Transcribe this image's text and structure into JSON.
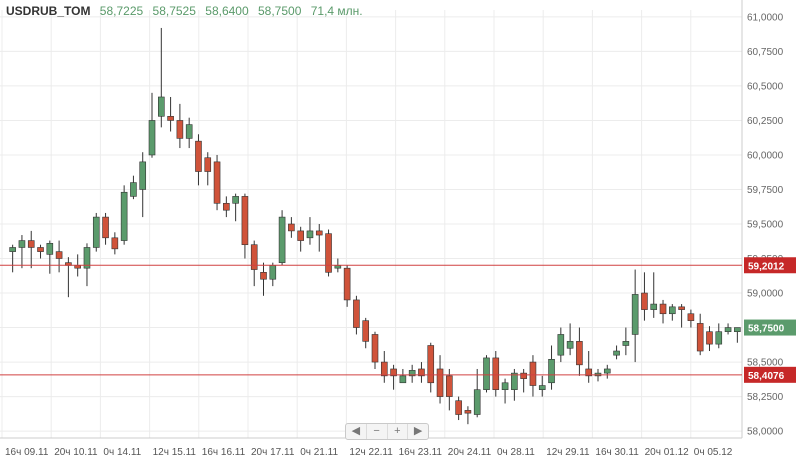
{
  "header": {
    "symbol": "USDRUB_TOM",
    "open": "58,7225",
    "high": "58,7525",
    "low": "58,6400",
    "close": "58,7500",
    "volume": "71,4 млн."
  },
  "navigator": {
    "left": "◀",
    "zoom_out": "−",
    "zoom_in": "+",
    "right": "▶"
  },
  "colors": {
    "up": "#5b9b6c",
    "down": "#d0533a",
    "level": "#d04040",
    "last": "#5b9b6c"
  },
  "chart_data": {
    "type": "candlestick",
    "y_axis": {
      "range": [
        57.95,
        61.05
      ],
      "ticks": [
        "61,0000",
        "60,7500",
        "60,5000",
        "60,2500",
        "60,0000",
        "59,7500",
        "59,5000",
        "59,2500",
        "59,0000",
        "58,7500",
        "58,5000",
        "58,2500",
        "58,0000"
      ]
    },
    "x_labels": [
      "16ч 09.11",
      "20ч 10.11",
      "0ч 14.11",
      "12ч 15.11",
      "16ч 16.11",
      "20ч 17.11",
      "0ч 21.11",
      "12ч 22.11",
      "16ч 23.11",
      "20ч 24.11",
      "0ч 28.11",
      "12ч 29.11",
      "16ч 30.11",
      "20ч 01.12",
      "0ч 05.12"
    ],
    "levels": [
      {
        "label": "59,2012",
        "value": 59.2012
      },
      {
        "label": "58,4076",
        "value": 58.4076
      }
    ],
    "last_price": {
      "label": "58,7500",
      "value": 58.75
    },
    "candles": [
      [
        59.3,
        59.33,
        59.35,
        59.15
      ],
      [
        59.33,
        59.38,
        59.42,
        59.18
      ],
      [
        59.38,
        59.33,
        59.45,
        59.18
      ],
      [
        59.33,
        59.3,
        59.35,
        59.25
      ],
      [
        59.28,
        59.36,
        59.38,
        59.14
      ],
      [
        59.3,
        59.25,
        59.38,
        59.15
      ],
      [
        59.22,
        59.2,
        59.26,
        58.97
      ],
      [
        59.2,
        59.18,
        59.28,
        59.12
      ],
      [
        59.18,
        59.33,
        59.36,
        59.05
      ],
      [
        59.33,
        59.55,
        59.58,
        59.3
      ],
      [
        59.55,
        59.4,
        59.58,
        59.35
      ],
      [
        59.4,
        59.32,
        59.44,
        59.28
      ],
      [
        59.38,
        59.73,
        59.78,
        59.35
      ],
      [
        59.7,
        59.8,
        59.85,
        59.68
      ],
      [
        59.75,
        59.95,
        60.02,
        59.55
      ],
      [
        60.0,
        60.25,
        60.45,
        59.98
      ],
      [
        60.28,
        60.42,
        60.92,
        60.2
      ],
      [
        60.28,
        60.25,
        60.42,
        60.17
      ],
      [
        60.25,
        60.12,
        60.37,
        60.05
      ],
      [
        60.12,
        60.22,
        60.27,
        60.05
      ],
      [
        60.1,
        59.88,
        60.15,
        59.78
      ],
      [
        59.98,
        59.88,
        60.02,
        59.78
      ],
      [
        59.95,
        59.65,
        60.0,
        59.6
      ],
      [
        59.65,
        59.6,
        59.7,
        59.55
      ],
      [
        59.65,
        59.7,
        59.72,
        59.52
      ],
      [
        59.7,
        59.35,
        59.72,
        59.25
      ],
      [
        59.35,
        59.17,
        59.38,
        59.05
      ],
      [
        59.15,
        59.1,
        59.22,
        58.98
      ],
      [
        59.1,
        59.2,
        59.22,
        59.05
      ],
      [
        59.22,
        59.55,
        59.6,
        59.2
      ],
      [
        59.5,
        59.45,
        59.55,
        59.4
      ],
      [
        59.45,
        59.38,
        59.48,
        59.3
      ],
      [
        59.4,
        59.45,
        59.55,
        59.35
      ],
      [
        59.45,
        59.42,
        59.5,
        59.3
      ],
      [
        59.43,
        59.15,
        59.46,
        59.12
      ],
      [
        59.18,
        59.2,
        59.25,
        59.15
      ],
      [
        59.18,
        58.95,
        59.2,
        58.9
      ],
      [
        58.95,
        58.75,
        58.98,
        58.7
      ],
      [
        58.8,
        58.65,
        58.82,
        58.6
      ],
      [
        58.7,
        58.5,
        58.72,
        58.45
      ],
      [
        58.5,
        58.4,
        58.58,
        58.35
      ],
      [
        58.45,
        58.4,
        58.48,
        58.3
      ],
      [
        58.35,
        58.4,
        58.45,
        58.35
      ],
      [
        58.4,
        58.44,
        58.48,
        58.35
      ],
      [
        58.45,
        58.4,
        58.5,
        58.35
      ],
      [
        58.62,
        58.35,
        58.64,
        58.28
      ],
      [
        58.45,
        58.25,
        58.55,
        58.2
      ],
      [
        58.4,
        58.25,
        58.45,
        58.15
      ],
      [
        58.22,
        58.12,
        58.25,
        58.08
      ],
      [
        58.15,
        58.13,
        58.18,
        58.05
      ],
      [
        58.12,
        58.3,
        58.45,
        58.1
      ],
      [
        58.3,
        58.53,
        58.55,
        58.28
      ],
      [
        58.53,
        58.3,
        58.58,
        58.25
      ],
      [
        58.3,
        58.35,
        58.38,
        58.2
      ],
      [
        58.3,
        58.42,
        58.45,
        58.22
      ],
      [
        58.42,
        58.38,
        58.45,
        58.28
      ],
      [
        58.5,
        58.33,
        58.55,
        58.25
      ],
      [
        58.3,
        58.33,
        58.4,
        58.25
      ],
      [
        58.35,
        58.52,
        58.62,
        58.3
      ],
      [
        58.55,
        58.7,
        58.75,
        58.5
      ],
      [
        58.6,
        58.65,
        58.78,
        58.55
      ],
      [
        58.65,
        58.48,
        58.75,
        58.4
      ],
      [
        58.45,
        58.4,
        58.58,
        58.35
      ],
      [
        58.4,
        58.42,
        58.45,
        58.36
      ],
      [
        58.42,
        58.45,
        58.48,
        58.38
      ],
      [
        58.55,
        58.58,
        58.62,
        58.52
      ],
      [
        58.62,
        58.65,
        58.75,
        58.55
      ],
      [
        58.7,
        58.99,
        59.17,
        58.5
      ],
      [
        59.0,
        58.88,
        59.15,
        58.8
      ],
      [
        58.88,
        58.92,
        59.15,
        58.82
      ],
      [
        58.92,
        58.85,
        58.95,
        58.78
      ],
      [
        58.85,
        58.9,
        58.92,
        58.8
      ],
      [
        58.9,
        58.88,
        58.92,
        58.75
      ],
      [
        58.85,
        58.8,
        58.88,
        58.75
      ],
      [
        58.78,
        58.58,
        58.85,
        58.55
      ],
      [
        58.72,
        58.63,
        58.76,
        58.58
      ],
      [
        58.63,
        58.72,
        58.78,
        58.6
      ],
      [
        58.72,
        58.75,
        58.78,
        58.7
      ],
      [
        58.72,
        58.75,
        58.75,
        58.64
      ]
    ]
  }
}
